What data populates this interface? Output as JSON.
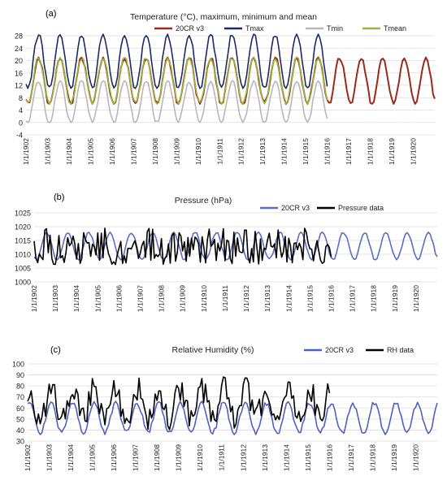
{
  "panels": [
    {
      "label": "(a)"
    },
    {
      "label": "(b)"
    },
    {
      "label": "(c)"
    }
  ],
  "chart_data": [
    {
      "type": "line",
      "title": "Temperature (°C), maximum, minimum and mean",
      "ylim": [
        -4,
        28
      ],
      "yticks": [
        "28",
        "24",
        "20",
        "16",
        "12",
        "8",
        "4",
        "0",
        "-4"
      ],
      "ytick_values": [
        28,
        24,
        20,
        16,
        12,
        8,
        4,
        0,
        -4
      ],
      "x_start": 1902.0,
      "x_end": 1921.0,
      "xticks": [
        "1/1/1902",
        "1/1/1903",
        "1/1/1904",
        "1/1/1905",
        "1/1/1906",
        "1/1/1907",
        "1/1/1908",
        "1/1/1909",
        "1/1/1910",
        "1/1/1911",
        "1/1/1912",
        "1/1/1913",
        "1/1/1914",
        "1/1/1915",
        "1/1/1916",
        "1/1/1917",
        "1/1/1918",
        "1/1/1919",
        "1/1/1920"
      ],
      "legend_position": "top",
      "grid": true,
      "series": [
        {
          "name": "20CR v3",
          "color": "#9a2a1a",
          "start_year": 1902,
          "end_year": 1921,
          "min": 6,
          "max": 21
        },
        {
          "name": "Tmax",
          "color": "#1c2a66",
          "start_year": 1902,
          "end_year": 1916,
          "min": 11,
          "max": 28.5
        },
        {
          "name": "Tmin",
          "color": "#b8b8b8",
          "start_year": 1902,
          "end_year": 1916,
          "min": 0,
          "max": 13.5
        },
        {
          "name": "Tmean",
          "color": "#9ab63a",
          "start_year": 1902,
          "end_year": 1916,
          "min": 6,
          "max": 21
        }
      ]
    },
    {
      "type": "line",
      "title": "Pressure (hPa)",
      "ylim": [
        1000,
        1025
      ],
      "yticks": [
        "1025",
        "1020",
        "1015",
        "1010",
        "1005",
        "1000"
      ],
      "ytick_values": [
        1025,
        1020,
        1015,
        1010,
        1005,
        1000
      ],
      "x_start": 1902.0,
      "x_end": 1921.0,
      "xticks": [
        "1/1/1902",
        "1/1/1903",
        "1/1/1904",
        "1/1/1905",
        "1/1/1906",
        "1/1/1907",
        "1/1/1908",
        "1/1/1909",
        "1/1/1910",
        "1/1/1911",
        "1/1/1912",
        "1/1/1913",
        "1/1/1914",
        "1/1/1915",
        "1/1/1916",
        "1/1/1917",
        "1/1/1918",
        "1/1/1919",
        "1/1/1920"
      ],
      "legend_position": "top-right",
      "grid": true,
      "series": [
        {
          "name": "20CR v3",
          "color": "#5b6fc2",
          "start_year": 1902,
          "end_year": 1921,
          "min": 1008,
          "max": 1018
        },
        {
          "name": "Pressure data",
          "color": "#000000",
          "start_year": 1902,
          "end_year": 1916,
          "min": 1005,
          "max": 1021
        }
      ]
    },
    {
      "type": "line",
      "title": "Relative Humidity (%)",
      "ylim": [
        30,
        100
      ],
      "yticks": [
        "100",
        "90",
        "80",
        "70",
        "60",
        "50",
        "40",
        "30"
      ],
      "ytick_values": [
        100,
        90,
        80,
        70,
        60,
        50,
        40,
        30
      ],
      "x_start": 1902.0,
      "x_end": 1921.0,
      "xticks": [
        "1/1/1902",
        "1/1/1903",
        "1/1/1904",
        "1/1/1905",
        "1/1/1906",
        "1/1/1907",
        "1/1/1908",
        "1/1/1909",
        "1/1/1910",
        "1/1/1911",
        "1/1/1912",
        "1/1/1913",
        "1/1/1914",
        "1/1/1915",
        "1/1/1916",
        "1/1/1917",
        "1/1/1918",
        "1/1/1919",
        "1/1/1920"
      ],
      "legend_position": "top-right",
      "grid": true,
      "series": [
        {
          "name": "20CR v3",
          "color": "#4f62bd",
          "start_year": 1902,
          "end_year": 1921,
          "min": 36,
          "max": 66
        },
        {
          "name": "RH data",
          "color": "#000000",
          "start_year": 1902,
          "end_year": 1916,
          "min": 38,
          "max": 90
        }
      ]
    }
  ]
}
